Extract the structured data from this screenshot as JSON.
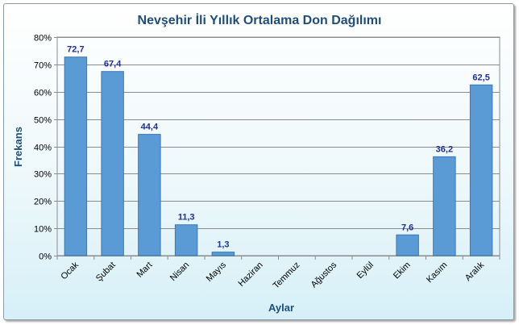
{
  "chart_data": {
    "type": "bar",
    "title": "Nevşehir İli Yıllık Ortalama Don Dağılımı",
    "xlabel": "Aylar",
    "ylabel": "Frekans",
    "categories": [
      "Ocak",
      "Şubat",
      "Mart",
      "Nisan",
      "Mayıs",
      "Haziran",
      "Temmuz",
      "Ağustos",
      "Eylül",
      "Ekim",
      "Kasım",
      "Aralık"
    ],
    "values": [
      72.7,
      67.4,
      44.4,
      11.3,
      1.3,
      0,
      0,
      0,
      0,
      7.6,
      36.2,
      62.5
    ],
    "data_labels": [
      "72,7",
      "67,4",
      "44,4",
      "11,3",
      "1,3",
      "",
      "",
      "",
      "",
      "7,6",
      "36,2",
      "62,5"
    ],
    "ylim": [
      0,
      80
    ],
    "yticks": [
      0,
      10,
      20,
      30,
      40,
      50,
      60,
      70,
      80
    ],
    "ytick_labels": [
      "0%",
      "10%",
      "20%",
      "30%",
      "40%",
      "50%",
      "60%",
      "70%",
      "80%"
    ],
    "grid": true,
    "legend": "none",
    "colors": {
      "bar": "#5b9bd5",
      "bar_edge": "#3b76b8",
      "title": "#1f4e79",
      "data_label": "#1f2f99"
    }
  }
}
